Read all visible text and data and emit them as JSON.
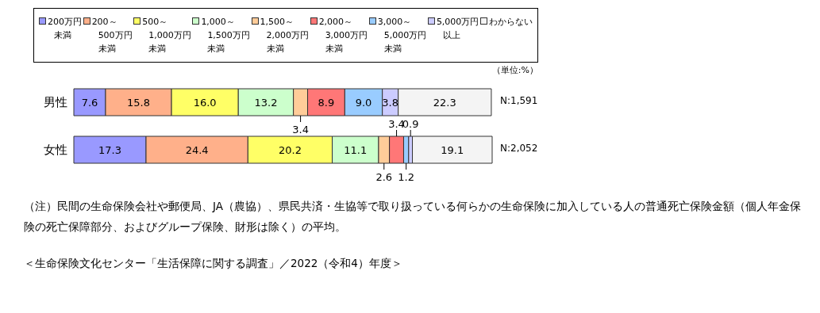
{
  "chart_data": {
    "type": "bar",
    "orientation": "horizontal",
    "stacked": true,
    "data_labels": true,
    "legend": "top",
    "grid": false,
    "categories": [
      "男性",
      "女性"
    ],
    "series": [
      {
        "name": "200万円未満",
        "color": "#9999ff",
        "values": [
          7.6,
          17.3
        ]
      },
      {
        "name": "200～500万円未満",
        "color": "#ffb08a",
        "values": [
          15.8,
          24.4
        ]
      },
      {
        "name": "500～1,000万円未満",
        "color": "#ffff66",
        "values": [
          16.0,
          20.2
        ],
        "value_labels": [
          "16.0",
          "20.2"
        ]
      },
      {
        "name": "1,000～1,500万円未満",
        "color": "#ccffcc",
        "values": [
          13.2,
          11.1
        ]
      },
      {
        "name": "1,500～2,000万円未満",
        "color": "#ffcc99",
        "values": [
          3.4,
          2.6
        ]
      },
      {
        "name": "2,000～3,000万円未満",
        "color": "#ff7777",
        "values": [
          8.9,
          3.4
        ]
      },
      {
        "name": "3,000～5,000万円未満",
        "color": "#99ccff",
        "values": [
          9.0,
          1.2
        ],
        "value_labels": [
          "9.0",
          "1.2"
        ]
      },
      {
        "name": "5,000万円以上",
        "color": "#ccccff",
        "values": [
          3.8,
          0.9
        ]
      },
      {
        "name": "わからない",
        "color": "#f4f4f4",
        "values": [
          22.3,
          19.1
        ]
      }
    ],
    "annotations": [
      "（単位:%）",
      "N:1,591",
      "N:2,052",
      "（注）民間の生命保険会社や郵便局、JA（農協）、県民共済・生協等で取り扱っている何らかの生命保険に加入している人の普通死亡保険金額（個人年金保険の死亡保障部分、およびグループ保険、財形は除く）の平均。",
      "＜生命保険文化センター「生活保障に関する調査」／2022（令和4）年度＞"
    ]
  }
}
